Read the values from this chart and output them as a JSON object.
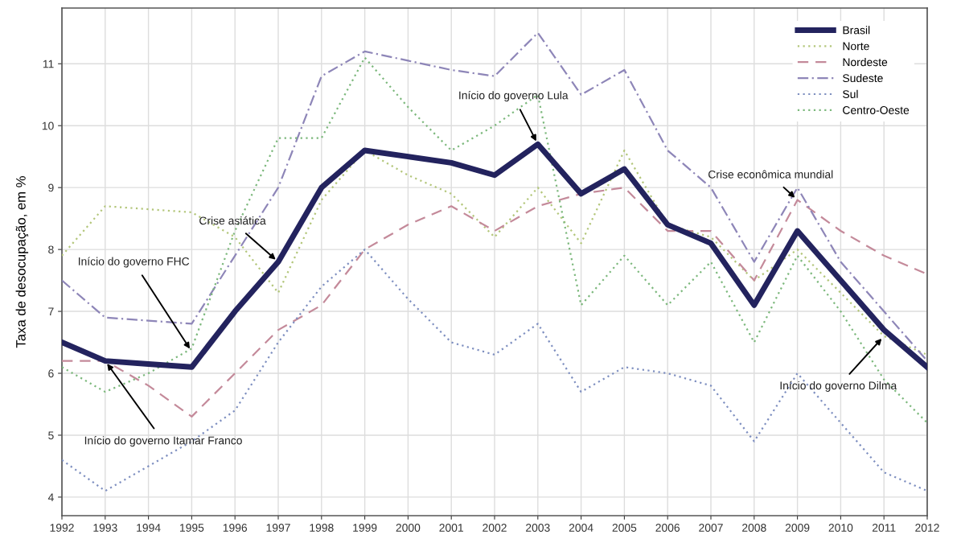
{
  "chart_data": {
    "type": "line",
    "ylabel": "Taxa de desocupação, em %",
    "x": [
      1992,
      1993,
      1994,
      1995,
      1996,
      1997,
      1998,
      1999,
      2000,
      2001,
      2002,
      2003,
      2004,
      2005,
      2006,
      2007,
      2008,
      2009,
      2010,
      2011,
      2012
    ],
    "xlim": [
      1992,
      2012
    ],
    "xticks": [
      1992,
      1993,
      1994,
      1995,
      1996,
      1997,
      1998,
      1999,
      2000,
      2001,
      2002,
      2003,
      2004,
      2005,
      2006,
      2007,
      2008,
      2009,
      2010,
      2011,
      2012
    ],
    "ylim": [
      3.7,
      11.9
    ],
    "yticks": [
      4,
      5,
      6,
      7,
      8,
      9,
      10,
      11
    ],
    "grid": true,
    "legend": "top right",
    "series": [
      {
        "name": "Brasil",
        "color": "#23235e",
        "line_style": "solid",
        "values": [
          6.5,
          6.2,
          6.15,
          6.1,
          7.0,
          7.8,
          9.0,
          9.6,
          9.5,
          9.4,
          9.2,
          9.7,
          8.9,
          9.3,
          8.4,
          8.1,
          7.1,
          8.3,
          7.5,
          6.7,
          6.1
        ]
      },
      {
        "name": "Norte",
        "color": "#b3c67a",
        "line_style": "dotted",
        "values": [
          7.9,
          8.7,
          8.65,
          8.6,
          8.2,
          7.3,
          8.8,
          9.6,
          9.2,
          8.9,
          8.2,
          9.0,
          8.1,
          9.6,
          8.4,
          8.2,
          7.5,
          8.0,
          7.3,
          6.6,
          6.3
        ]
      },
      {
        "name": "Nordeste",
        "color": "#c48a9a",
        "line_style": "dashed",
        "values": [
          6.2,
          6.2,
          5.8,
          5.3,
          6.0,
          6.7,
          7.1,
          8.0,
          8.4,
          8.7,
          8.3,
          8.7,
          8.9,
          9.0,
          8.3,
          8.3,
          7.5,
          8.8,
          8.3,
          7.9,
          7.6
        ]
      },
      {
        "name": "Sudeste",
        "color": "#8e86b8",
        "line_style": "dashdot",
        "values": [
          7.5,
          6.9,
          6.85,
          6.8,
          7.9,
          9.0,
          10.8,
          11.2,
          11.05,
          10.9,
          10.8,
          11.5,
          10.5,
          10.9,
          9.6,
          9.0,
          7.8,
          9.0,
          7.8,
          7.0,
          6.2
        ]
      },
      {
        "name": "Sul",
        "color": "#7e8fc0",
        "line_style": "dotted",
        "values": [
          4.6,
          4.1,
          4.5,
          4.9,
          5.4,
          6.5,
          7.4,
          8.0,
          7.2,
          6.5,
          6.3,
          6.8,
          5.7,
          6.1,
          6.0,
          5.8,
          4.9,
          6.0,
          5.2,
          4.4,
          4.1
        ]
      },
      {
        "name": "Centro-Oeste",
        "color": "#7cb87c",
        "line_style": "dotted",
        "values": [
          6.1,
          5.7,
          6.0,
          6.4,
          8.3,
          9.8,
          9.8,
          11.1,
          10.3,
          9.6,
          10.0,
          10.5,
          7.1,
          7.9,
          7.1,
          7.8,
          6.5,
          7.9,
          7.0,
          5.9,
          5.2
        ]
      }
    ],
    "annotations": [
      {
        "text": "Início do governo Itamar Franco",
        "x": 1993,
        "y": 6.2
      },
      {
        "text": "Início do governo FHC",
        "x": 1995,
        "y": 6.35
      },
      {
        "text": "Crise asiática",
        "x": 1997,
        "y": 7.8
      },
      {
        "text": "Início do governo Lula",
        "x": 2003,
        "y": 9.7
      },
      {
        "text": "Crise econômica mundial",
        "x": 2009,
        "y": 8.8
      },
      {
        "text": "Início do governo Dilma",
        "x": 2011,
        "y": 6.6
      }
    ]
  }
}
